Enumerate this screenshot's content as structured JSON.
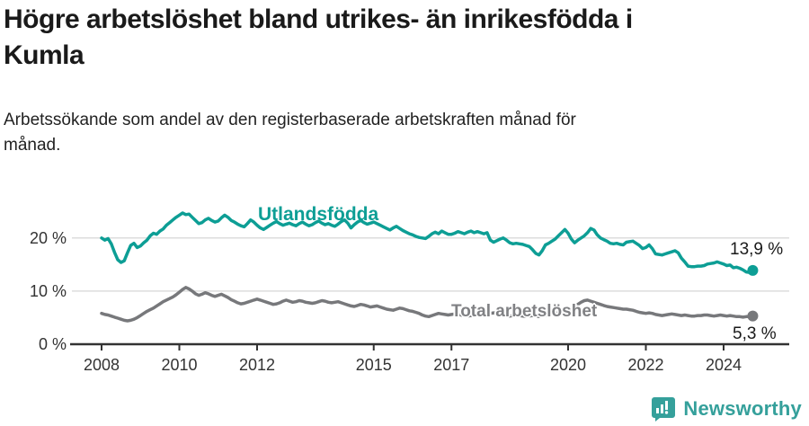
{
  "header": {
    "title_lines": [
      "Högre arbetslöshet bland utrikes- än inrikesfödda i",
      "Kumla"
    ],
    "subtitle_lines": [
      "Arbetssökande som andel av den registerbaserade arbetskraften månad för",
      "månad."
    ]
  },
  "chart_data": {
    "type": "line",
    "unit": "%",
    "frequency": "monthly",
    "x_start": "2008-01",
    "x_end": "2024-10",
    "x_tick_years": [
      2008,
      2010,
      2012,
      2015,
      2017,
      2020,
      2022,
      2024
    ],
    "y_ticks": [
      {
        "value": 0,
        "label": "0 %"
      },
      {
        "value": 10,
        "label": "10 %"
      },
      {
        "value": 20,
        "label": "20 %"
      }
    ],
    "ylim": [
      0,
      27
    ],
    "grid": "horizontal",
    "colors": {
      "grid": "#dddddd",
      "axis": "#333333",
      "tick_text": "#333333"
    },
    "series": [
      {
        "name": "Utlandsfödda",
        "color": "#0d9e95",
        "end_label": "13,9 %",
        "end_value": 13.9,
        "values": [
          20.0,
          19.6,
          19.9,
          18.9,
          17.3,
          15.9,
          15.4,
          15.7,
          17.2,
          18.6,
          19.0,
          18.2,
          18.5,
          19.1,
          19.6,
          20.4,
          20.9,
          20.7,
          21.3,
          21.7,
          22.4,
          22.9,
          23.4,
          23.9,
          24.3,
          24.7,
          24.4,
          24.5,
          23.9,
          23.3,
          22.7,
          22.9,
          23.4,
          23.7,
          23.3,
          23.0,
          23.2,
          23.8,
          24.3,
          23.9,
          23.3,
          23.0,
          22.6,
          22.3,
          22.1,
          22.7,
          23.4,
          23.0,
          22.4,
          21.9,
          21.6,
          22.0,
          22.4,
          22.8,
          23.1,
          22.7,
          22.4,
          22.6,
          22.8,
          22.5,
          22.3,
          22.7,
          23.0,
          22.6,
          22.3,
          22.5,
          22.9,
          23.2,
          22.8,
          22.5,
          22.7,
          22.4,
          22.2,
          22.6,
          23.1,
          23.4,
          22.8,
          21.9,
          22.5,
          23.0,
          23.3,
          22.9,
          22.6,
          22.8,
          23.0,
          22.7,
          22.4,
          22.1,
          21.8,
          21.5,
          21.9,
          22.2,
          21.8,
          21.4,
          21.1,
          20.8,
          20.6,
          20.3,
          20.1,
          20.0,
          19.9,
          20.3,
          20.8,
          21.1,
          20.8,
          21.3,
          21.0,
          20.7,
          20.7,
          20.9,
          21.2,
          21.0,
          20.8,
          21.1,
          21.3,
          21.0,
          21.2,
          21.0,
          20.8,
          21.0,
          19.6,
          19.2,
          19.5,
          19.8,
          20.0,
          19.6,
          19.1,
          18.9,
          19.0,
          18.9,
          18.8,
          18.6,
          18.4,
          17.8,
          17.1,
          16.8,
          17.6,
          18.7,
          19.0,
          19.4,
          19.8,
          20.4,
          21.0,
          21.6,
          20.9,
          19.8,
          19.1,
          19.6,
          20.0,
          20.4,
          21.0,
          21.8,
          21.5,
          20.6,
          20.0,
          19.7,
          19.4,
          19.0,
          18.9,
          19.0,
          18.8,
          18.7,
          19.2,
          19.3,
          19.4,
          19.0,
          18.6,
          18.0,
          18.2,
          18.7,
          18.0,
          17.0,
          16.9,
          16.8,
          17.0,
          17.2,
          17.4,
          17.6,
          17.2,
          16.2,
          15.5,
          14.7,
          14.6,
          14.6,
          14.7,
          14.7,
          14.8,
          15.1,
          15.2,
          15.3,
          15.5,
          15.3,
          15.1,
          14.8,
          14.9,
          14.4,
          14.5,
          14.3,
          14.0,
          13.6,
          13.5,
          13.9
        ]
      },
      {
        "name": "Total arbetslöshet",
        "color": "#77787b",
        "end_label": "5,3 %",
        "end_value": 5.3,
        "values": [
          5.8,
          5.6,
          5.5,
          5.3,
          5.1,
          4.9,
          4.7,
          4.5,
          4.4,
          4.5,
          4.7,
          5.0,
          5.4,
          5.8,
          6.2,
          6.5,
          6.8,
          7.2,
          7.6,
          8.0,
          8.3,
          8.6,
          8.9,
          9.3,
          9.8,
          10.3,
          10.7,
          10.4,
          10.0,
          9.5,
          9.2,
          9.4,
          9.7,
          9.5,
          9.2,
          9.0,
          9.2,
          9.4,
          9.1,
          8.8,
          8.4,
          8.1,
          7.8,
          7.6,
          7.7,
          7.9,
          8.1,
          8.3,
          8.5,
          8.3,
          8.1,
          7.9,
          7.7,
          7.5,
          7.6,
          7.8,
          8.1,
          8.3,
          8.1,
          7.9,
          8.0,
          8.2,
          8.1,
          7.9,
          7.8,
          7.7,
          7.8,
          8.0,
          8.2,
          8.1,
          7.9,
          7.8,
          7.9,
          8.0,
          7.8,
          7.6,
          7.4,
          7.2,
          7.1,
          7.3,
          7.5,
          7.4,
          7.2,
          7.0,
          7.1,
          7.2,
          7.0,
          6.8,
          6.6,
          6.5,
          6.4,
          6.6,
          6.8,
          6.7,
          6.5,
          6.3,
          6.2,
          6.0,
          5.8,
          5.5,
          5.3,
          5.2,
          5.4,
          5.6,
          5.8,
          5.7,
          5.6,
          5.5,
          5.6,
          5.7,
          5.6,
          5.5,
          5.4,
          5.3,
          5.4,
          5.6,
          5.8,
          5.9,
          5.8,
          5.7,
          5.8,
          5.9,
          5.8,
          5.6,
          5.5,
          5.4,
          5.3,
          5.4,
          5.5,
          5.4,
          5.3,
          5.2,
          5.3,
          5.4,
          5.3,
          5.2,
          5.3,
          5.5,
          5.6,
          5.7,
          5.8,
          5.9,
          6.0,
          6.1,
          6.3,
          6.5,
          6.9,
          7.5,
          7.9,
          8.2,
          8.3,
          8.1,
          7.9,
          7.7,
          7.5,
          7.3,
          7.1,
          7.0,
          6.9,
          6.8,
          6.7,
          6.6,
          6.6,
          6.5,
          6.4,
          6.2,
          6.0,
          5.9,
          5.8,
          5.9,
          5.8,
          5.6,
          5.5,
          5.4,
          5.5,
          5.6,
          5.7,
          5.6,
          5.5,
          5.4,
          5.5,
          5.4,
          5.3,
          5.3,
          5.4,
          5.4,
          5.5,
          5.5,
          5.4,
          5.3,
          5.4,
          5.5,
          5.4,
          5.3,
          5.4,
          5.3,
          5.2,
          5.2,
          5.1,
          5.2,
          5.2,
          5.3
        ]
      }
    ]
  },
  "footer": {
    "brand": "Newsworthy",
    "brand_color": "#35a09b"
  }
}
